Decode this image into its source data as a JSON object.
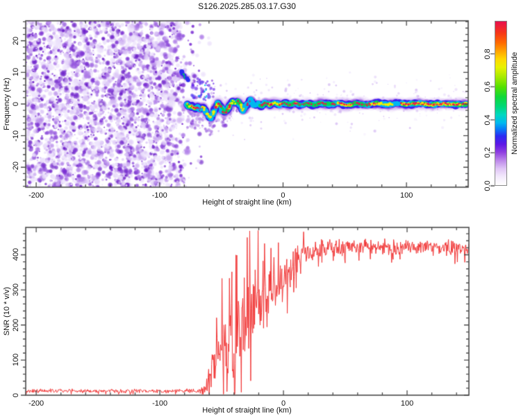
{
  "title": "S126.2025.285.03.17.G30",
  "layout_colors": {
    "axis": "#4a4a4a",
    "background": "#ffffff"
  },
  "chart_data": [
    {
      "type": "heatmap",
      "name": "spectrogram",
      "xlabel": "Height of straight line (km)",
      "ylabel": "Frequency (Hz)",
      "xlim": [
        -208.5,
        150
      ],
      "ylim": [
        -26.3,
        26.3
      ],
      "xticks": [
        -200,
        -100,
        0,
        100
      ],
      "xtick_minor_step": 20,
      "yticks": [
        -20,
        -10,
        0,
        10,
        20
      ],
      "ytick_minor_step": 2,
      "noise_palette": [
        "#ede3fc",
        "#ddc9f7",
        "#c8a6f0",
        "#ad7ae7",
        "#9152dc",
        "#7a2ed2",
        "#6616c6"
      ],
      "noise_region": {
        "x_start": -208.5,
        "x_end": -58,
        "fade_start": -88
      },
      "ridge_points": [
        [
          -77.5,
          -0.2
        ],
        [
          -75.5,
          -1.0
        ],
        [
          -73.5,
          -0.6
        ],
        [
          -71.5,
          -1.5
        ],
        [
          -69.5,
          -0.9
        ],
        [
          -67.5,
          -1.8
        ],
        [
          -65,
          -1.0
        ],
        [
          -63,
          -2.0
        ],
        [
          -61,
          -3.3
        ],
        [
          -58.5,
          -4.3
        ],
        [
          -56.5,
          -3.2
        ],
        [
          -54.5,
          -1.0
        ],
        [
          -52.5,
          0.2
        ],
        [
          -50.5,
          -0.8
        ],
        [
          -48.5,
          -2.3
        ],
        [
          -46.5,
          -2.7
        ],
        [
          -44.5,
          -1.5
        ],
        [
          -42.5,
          0.0
        ],
        [
          -40.5,
          0.9
        ],
        [
          -38.5,
          0.3
        ],
        [
          -36.5,
          0.9
        ],
        [
          -34.5,
          -0.5
        ],
        [
          -32.5,
          -1.9
        ],
        [
          -30.5,
          -1.0
        ],
        [
          -28.5,
          0.4
        ],
        [
          -26.5,
          1.1
        ],
        [
          -24.5,
          0.4
        ],
        [
          -22.5,
          -0.5
        ],
        [
          -20.5,
          0.1
        ],
        [
          -17.5,
          -0.6
        ],
        [
          -14.5,
          0.4
        ],
        [
          -11,
          -0.3
        ],
        [
          -7,
          0.4
        ],
        [
          -3,
          -0.2
        ],
        [
          1,
          0.3
        ],
        [
          5,
          -0.3
        ],
        [
          9,
          0.3
        ],
        [
          14,
          -0.3
        ],
        [
          19,
          0.2
        ],
        [
          25,
          -0.3
        ],
        [
          31,
          0.3
        ],
        [
          38,
          -0.2
        ],
        [
          45,
          0.2
        ],
        [
          52,
          -0.3
        ],
        [
          60,
          0.2
        ],
        [
          68,
          -0.2
        ],
        [
          76,
          0.3
        ],
        [
          84,
          -0.2
        ],
        [
          92,
          0.2
        ],
        [
          100,
          -0.1
        ],
        [
          110,
          0.2
        ],
        [
          120,
          -0.2
        ],
        [
          130,
          0.1
        ],
        [
          140,
          -0.1
        ],
        [
          150,
          0.0
        ]
      ],
      "ridge_layers": [
        [
          9.0,
          "#c9a2ef",
          0.4,
          0
        ],
        [
          6.2,
          "#8036d8",
          0.8,
          0
        ],
        [
          4.6,
          "#3a1cee",
          0.95,
          0
        ],
        [
          3.4,
          "#00b8ef",
          1,
          0
        ],
        [
          2.4,
          "#00d855",
          1,
          0.06
        ],
        [
          1.7,
          "#f2ee00",
          1,
          0.14
        ],
        [
          1.2,
          "#ee1150",
          1,
          0.16
        ]
      ],
      "upper_blob_points": [
        [
          -82.5,
          10.2
        ],
        [
          -81,
          9.4
        ],
        [
          -79.5,
          8.4
        ],
        [
          -77.5,
          8.0
        ],
        [
          -76,
          7.3
        ]
      ],
      "upper_blob_layers": [
        [
          5.5,
          "#c9a2ef",
          0.4,
          0
        ],
        [
          3.8,
          "#8036d8",
          0.85,
          0
        ],
        [
          2.6,
          "#2b2bf2",
          1,
          0
        ],
        [
          1.8,
          "#00b8ef",
          1,
          0.1
        ],
        [
          1.1,
          "#00d855",
          1,
          0.3
        ]
      ],
      "colorbar": {
        "label": "Normalized spectral amplitude",
        "tick_labels": [
          "0.0",
          "0.2",
          "0.4",
          "0.6",
          "0.8"
        ],
        "tick_values": [
          0,
          0.2,
          0.4,
          0.6,
          0.8
        ],
        "range": [
          0,
          1
        ],
        "stops": [
          [
            0.0,
            "#ffffff"
          ],
          [
            0.05,
            "#f3eafc"
          ],
          [
            0.1,
            "#e0c6f6"
          ],
          [
            0.15,
            "#bd88ea"
          ],
          [
            0.2,
            "#8f3fe0"
          ],
          [
            0.25,
            "#5c17e6"
          ],
          [
            0.3,
            "#2b2bf2"
          ],
          [
            0.34,
            "#0877f8"
          ],
          [
            0.38,
            "#00b8ef"
          ],
          [
            0.43,
            "#00d8c0"
          ],
          [
            0.48,
            "#00d878"
          ],
          [
            0.54,
            "#10d838"
          ],
          [
            0.6,
            "#55e000"
          ],
          [
            0.66,
            "#a5ea00"
          ],
          [
            0.72,
            "#e8f200"
          ],
          [
            0.77,
            "#ffd800"
          ],
          [
            0.82,
            "#ffa200"
          ],
          [
            0.87,
            "#ff6a00"
          ],
          [
            0.93,
            "#f63618"
          ],
          [
            1.0,
            "#e8104e"
          ]
        ]
      }
    },
    {
      "type": "line",
      "name": "snr_profile",
      "xlabel": "Height of straight line (km)",
      "ylabel": "SNR (10 * v/v)",
      "xlim": [
        -208.5,
        150
      ],
      "ylim": [
        0,
        478
      ],
      "xticks": [
        -200,
        -100,
        0,
        100
      ],
      "xtick_minor_step": 20,
      "yticks": [
        0,
        100,
        200,
        300,
        400
      ],
      "ytick_minor_step": 20,
      "line_color": "#f03434",
      "envelope_points": [
        [
          -208,
          12,
          6
        ],
        [
          -120,
          12,
          6
        ],
        [
          -80,
          12,
          6
        ],
        [
          -70,
          13,
          7
        ],
        [
          -65,
          16,
          10
        ],
        [
          -62,
          30,
          22
        ],
        [
          -59,
          70,
          60
        ],
        [
          -56,
          95,
          85
        ],
        [
          -52,
          115,
          100
        ],
        [
          -48,
          125,
          112
        ],
        [
          -44,
          140,
          122
        ],
        [
          -40,
          160,
          132
        ],
        [
          -36,
          185,
          130
        ],
        [
          -32,
          210,
          125
        ],
        [
          -28,
          232,
          120
        ],
        [
          -24,
          248,
          115
        ],
        [
          -20,
          255,
          105
        ],
        [
          -16,
          262,
          98
        ],
        [
          -12,
          275,
          90
        ],
        [
          -8,
          295,
          82
        ],
        [
          -4,
          315,
          74
        ],
        [
          0,
          330,
          68
        ],
        [
          4,
          345,
          62
        ],
        [
          8,
          360,
          56
        ],
        [
          12,
          375,
          50
        ],
        [
          16,
          390,
          44
        ],
        [
          20,
          400,
          38
        ],
        [
          24,
          408,
          34
        ],
        [
          28,
          415,
          30
        ],
        [
          35,
          420,
          27
        ],
        [
          50,
          423,
          25
        ],
        [
          70,
          424,
          24
        ],
        [
          90,
          420,
          24
        ],
        [
          110,
          423,
          24
        ],
        [
          130,
          420,
          24
        ],
        [
          150,
          417,
          24
        ]
      ],
      "spike": {
        "x": -20.3,
        "value": 469
      }
    }
  ]
}
